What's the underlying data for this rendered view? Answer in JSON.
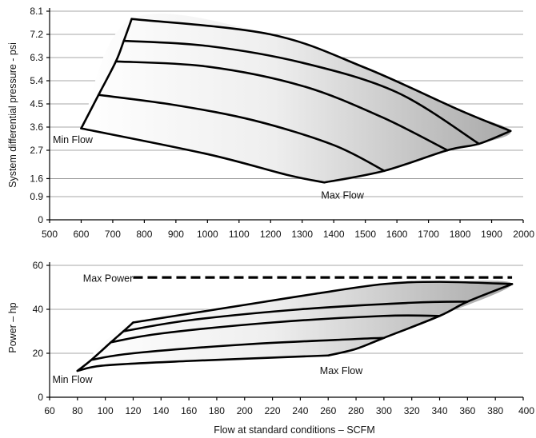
{
  "chart_data": [
    {
      "type": "line",
      "ylabel": "System differential pressure - psi",
      "xlabel": "",
      "xlim": [
        500,
        2000
      ],
      "ylim": [
        0,
        8.1
      ],
      "x_ticks": [
        500,
        600,
        700,
        800,
        900,
        1000,
        1100,
        1200,
        1300,
        1400,
        1500,
        1600,
        1700,
        1800,
        1900,
        2000
      ],
      "y_ticks": [
        0,
        0.9,
        1.6,
        2.7,
        3.6,
        4.5,
        5.4,
        6.3,
        7.2,
        8.1
      ],
      "grid": "horizontal",
      "annotations": [
        {
          "text": "Min Flow",
          "x": 510,
          "y": 3.1
        },
        {
          "text": "Max Flow",
          "x": 1360,
          "y": 0.95
        }
      ],
      "envelope": [
        [
          600,
          3.55
        ],
        [
          760,
          7.8
        ],
        [
          1200,
          7.2
        ],
        [
          1500,
          5.9
        ],
        [
          1800,
          4.25
        ],
        [
          1960,
          3.45
        ],
        [
          1860,
          2.95
        ],
        [
          1760,
          2.7
        ],
        [
          1560,
          1.9
        ],
        [
          1370,
          1.45
        ],
        [
          1200,
          1.95
        ],
        [
          1000,
          2.55
        ],
        [
          800,
          3.1
        ],
        [
          600,
          3.55
        ]
      ],
      "series": [
        {
          "x": [
            600,
            1000,
            1250,
            1370
          ],
          "y": [
            3.55,
            2.55,
            1.75,
            1.45
          ]
        },
        {
          "x": [
            655,
            900,
            1150,
            1400,
            1560
          ],
          "y": [
            4.85,
            4.45,
            3.85,
            2.9,
            1.9
          ]
        },
        {
          "x": [
            710,
            1000,
            1300,
            1550,
            1760
          ],
          "y": [
            6.15,
            5.95,
            5.2,
            4.0,
            2.7
          ]
        },
        {
          "x": [
            735,
            1000,
            1300,
            1600,
            1860
          ],
          "y": [
            6.95,
            6.75,
            6.1,
            4.95,
            2.95
          ]
        },
        {
          "x": [
            760,
            1200,
            1500,
            1800,
            1960
          ],
          "y": [
            7.8,
            7.2,
            5.9,
            4.25,
            3.45
          ]
        },
        {
          "x": [
            600,
            655,
            710,
            735,
            760
          ],
          "y": [
            3.55,
            4.85,
            6.15,
            6.95,
            7.8
          ]
        },
        {
          "x": [
            1370,
            1560,
            1760,
            1860,
            1960
          ],
          "y": [
            1.45,
            1.9,
            2.7,
            2.95,
            3.45
          ]
        }
      ]
    },
    {
      "type": "line",
      "ylabel": "Power – hp",
      "xlabel": "Flow at standard conditions – SCFM",
      "xlim": [
        60,
        400
      ],
      "ylim": [
        0,
        60
      ],
      "x_ticks": [
        60,
        80,
        100,
        120,
        140,
        160,
        180,
        200,
        220,
        240,
        260,
        280,
        300,
        320,
        340,
        360,
        380,
        400
      ],
      "y_ticks": [
        0,
        20,
        40,
        60
      ],
      "grid": "horizontal",
      "annotations": [
        {
          "text": "Max Power",
          "x": 84,
          "y": 54
        },
        {
          "text": "Min Flow",
          "x": 62,
          "y": 8
        },
        {
          "text": "Max Flow",
          "x": 254,
          "y": 12
        }
      ],
      "reference_line": {
        "name": "Max Power",
        "y": 54.5,
        "x": [
          120,
          392
        ]
      },
      "envelope": [
        [
          80,
          12
        ],
        [
          120,
          34
        ],
        [
          200,
          42
        ],
        [
          250,
          47
        ],
        [
          300,
          51.5
        ],
        [
          340,
          52.5
        ],
        [
          392,
          51.5
        ],
        [
          340,
          37
        ],
        [
          300,
          27
        ],
        [
          260,
          19
        ],
        [
          160,
          16.5
        ],
        [
          100,
          14.5
        ],
        [
          80,
          12
        ]
      ],
      "series": [
        {
          "x": [
            80,
            100,
            160,
            260
          ],
          "y": [
            12,
            14.5,
            16.5,
            19
          ]
        },
        {
          "x": [
            90,
            120,
            200,
            280,
            300
          ],
          "y": [
            17,
            20,
            24,
            26.5,
            27
          ]
        },
        {
          "x": [
            104,
            140,
            220,
            300,
            340
          ],
          "y": [
            25,
            29,
            34,
            37,
            37
          ]
        },
        {
          "x": [
            113,
            160,
            240,
            320,
            360
          ],
          "y": [
            30,
            35,
            40,
            43,
            43.5
          ]
        },
        {
          "x": [
            120,
            200,
            250,
            300,
            340,
            392
          ],
          "y": [
            34,
            42,
            47,
            51.5,
            52.5,
            51.5
          ]
        },
        {
          "x": [
            80,
            90,
            104,
            113,
            120
          ],
          "y": [
            12,
            17,
            25,
            30,
            34
          ]
        },
        {
          "x": [
            260,
            280,
            300,
            340,
            360,
            392
          ],
          "y": [
            19,
            22,
            27,
            37,
            43.5,
            51.5
          ]
        }
      ]
    }
  ]
}
